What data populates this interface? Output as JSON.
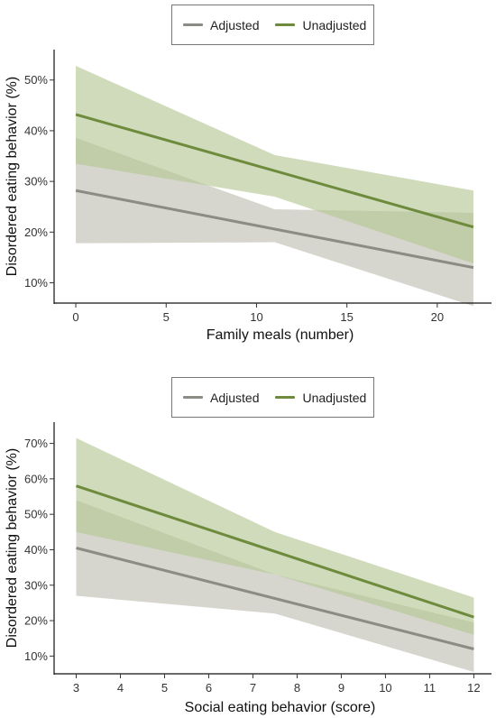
{
  "charts": [
    {
      "legend": {
        "items": [
          {
            "label": "Adjusted",
            "color": "#8c8c84"
          },
          {
            "label": "Unadjusted",
            "color": "#6e8b3d"
          }
        ]
      },
      "ylabel": "Disordered eating behavior (%)",
      "xlabel": "Family meals (number)",
      "xticks": [
        "0",
        "5",
        "10",
        "15",
        "20"
      ],
      "yticks": [
        "10%",
        "20%",
        "30%",
        "40%",
        "50%"
      ]
    },
    {
      "legend": {
        "items": [
          {
            "label": "Adjusted",
            "color": "#8c8c84"
          },
          {
            "label": "Unadjusted",
            "color": "#6e8b3d"
          }
        ]
      },
      "ylabel": "Disordered eating behavior (%)",
      "xlabel": "Social eating behavior (score)",
      "xticks": [
        "3",
        "4",
        "5",
        "6",
        "7",
        "8",
        "9",
        "10",
        "11",
        "12"
      ],
      "yticks": [
        "10%",
        "20%",
        "30%",
        "40%",
        "50%",
        "60%",
        "70%"
      ]
    }
  ],
  "chart_data": [
    {
      "type": "line",
      "xlabel": "Family meals (number)",
      "ylabel": "Disordered eating behavior (%)",
      "xlim": [
        -1.2,
        23
      ],
      "ylim": [
        6,
        56
      ],
      "xticks": [
        0,
        5,
        10,
        15,
        20
      ],
      "yticks": [
        10,
        20,
        30,
        40,
        50
      ],
      "legend_position": "top",
      "series": [
        {
          "name": "Adjusted",
          "color": "#8c8c84",
          "band_color": "#c8c8be",
          "x": [
            0,
            22
          ],
          "y": [
            28.2,
            13.0
          ],
          "ci_lower": [
            17.8,
            18.0,
            5.4
          ],
          "ci_upper": [
            38.6,
            24.5,
            23.8
          ],
          "ci_x": [
            0,
            11,
            22
          ]
        },
        {
          "name": "Unadjusted",
          "color": "#6e8b3d",
          "band_color": "#b5c795",
          "x": [
            0,
            22
          ],
          "y": [
            43.2,
            21.0
          ],
          "ci_lower": [
            33.5,
            27.0,
            13.8
          ],
          "ci_upper": [
            52.8,
            35.2,
            28.2
          ],
          "ci_x": [
            0,
            11,
            22
          ]
        }
      ]
    },
    {
      "type": "line",
      "xlabel": "Social eating behavior (score)",
      "ylabel": "Disordered eating behavior (%)",
      "xlim": [
        2.5,
        12.4
      ],
      "ylim": [
        5,
        76
      ],
      "xticks": [
        3,
        4,
        5,
        6,
        7,
        8,
        9,
        10,
        11,
        12
      ],
      "yticks": [
        10,
        20,
        30,
        40,
        50,
        60,
        70
      ],
      "legend_position": "top",
      "series": [
        {
          "name": "Adjusted",
          "color": "#8c8c84",
          "band_color": "#c8c8be",
          "x": [
            3,
            12
          ],
          "y": [
            40.5,
            12.0
          ],
          "ci_lower": [
            27.0,
            22.0,
            5.5
          ],
          "ci_upper": [
            54.0,
            33.0,
            19.5
          ],
          "ci_x": [
            3,
            7.5,
            12
          ]
        },
        {
          "name": "Unadjusted",
          "color": "#6e8b3d",
          "band_color": "#b5c795",
          "x": [
            3,
            12
          ],
          "y": [
            58.0,
            21.0
          ],
          "ci_lower": [
            45.0,
            33.0,
            16.0
          ],
          "ci_upper": [
            71.5,
            45.0,
            26.5
          ],
          "ci_x": [
            3,
            7.5,
            12
          ]
        }
      ]
    }
  ]
}
